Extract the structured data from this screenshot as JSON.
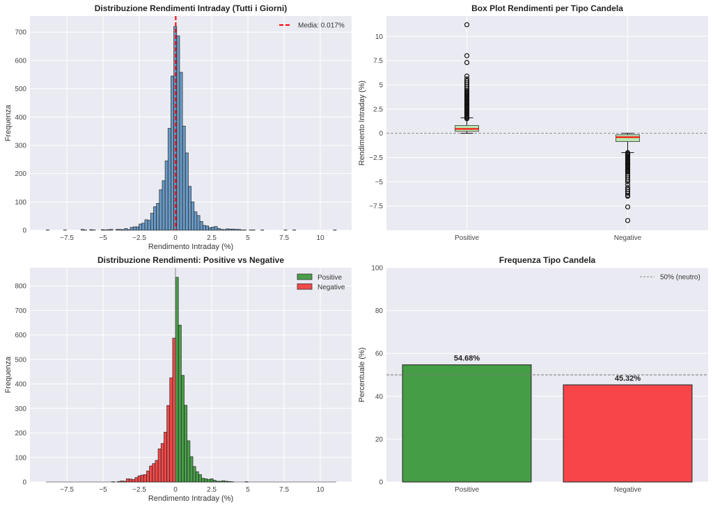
{
  "chart_data": [
    {
      "type": "bar",
      "subtype": "histogram",
      "title": "Distribuzione Rendimenti Intraday (Tutti i Giorni)",
      "xlabel": "Rendimento Intraday (%)",
      "ylabel": "Frequenza",
      "xlim": [
        -10.05,
        12.16
      ],
      "ylim": [
        0,
        757
      ],
      "xticks": [
        -7.5,
        -5.0,
        -2.5,
        0.0,
        2.5,
        5.0,
        7.5,
        10.0
      ],
      "yticks": [
        0,
        100,
        200,
        300,
        400,
        500,
        600,
        700
      ],
      "grid": true,
      "bin_start": -8.93,
      "bin_width": 0.2003,
      "counts": [
        1,
        0,
        0,
        0,
        0,
        0,
        1,
        0,
        0,
        0,
        0,
        0,
        3,
        1,
        0,
        2,
        1,
        0,
        0,
        2,
        1,
        2,
        3,
        0,
        3,
        3,
        2,
        6,
        2,
        10,
        12,
        12,
        22,
        25,
        37,
        35,
        60,
        83,
        95,
        143,
        175,
        245,
        360,
        545,
        720,
        687,
        558,
        368,
        273,
        155,
        100,
        65,
        52,
        31,
        17,
        15,
        9,
        11,
        13,
        6,
        3,
        2,
        5,
        4,
        4,
        3,
        3,
        1,
        1,
        0,
        1,
        1,
        0,
        0,
        1,
        0,
        0,
        0,
        0,
        0,
        0,
        0,
        1,
        0,
        0,
        1,
        0,
        0,
        0,
        0,
        0,
        0,
        0,
        0,
        0,
        0,
        0,
        0,
        0,
        1
      ],
      "color": "#6a9ac4",
      "mean_line": {
        "x": 0.017,
        "label": "Media: 0.017%",
        "color": "#ff0000"
      },
      "legend_placement": "upper right"
    },
    {
      "type": "box",
      "title": "Box Plot Rendimenti per Tipo Candela",
      "ylabel": "Rendimento Intraday (%)",
      "categories": [
        "Positive",
        "Negative"
      ],
      "ylim": [
        -10.0,
        12.1
      ],
      "yticks": [
        -7.5,
        -5.0,
        -2.5,
        0.0,
        2.5,
        5.0,
        7.5,
        10.0
      ],
      "grid": true,
      "reference_line": 0,
      "box_color": "#b8e6b0",
      "median_color": "#ff0000",
      "boxes": [
        {
          "name": "Positive",
          "whisker_low": 0.0,
          "q1": 0.2,
          "median": 0.45,
          "q3": 0.8,
          "whisker_high": 1.6,
          "outliers": [
            1.5,
            1.6,
            1.7,
            1.8,
            1.9,
            2.0,
            2.1,
            2.2,
            2.3,
            2.4,
            2.5,
            2.6,
            2.7,
            2.8,
            2.9,
            3.0,
            3.1,
            3.2,
            3.3,
            3.4,
            3.5,
            3.6,
            3.7,
            3.8,
            3.9,
            4.0,
            4.1,
            4.2,
            4.3,
            4.4,
            4.6,
            4.8,
            5.0,
            5.2,
            5.4,
            5.6,
            5.9,
            7.3,
            8.0,
            11.2
          ]
        },
        {
          "name": "Negative",
          "whisker_low": -2.0,
          "q1": -0.85,
          "median": -0.4,
          "q3": -0.15,
          "whisker_high": 0.0,
          "outliers": [
            -2.0,
            -2.1,
            -2.2,
            -2.3,
            -2.4,
            -2.5,
            -2.6,
            -2.7,
            -2.8,
            -2.9,
            -3.0,
            -3.1,
            -3.2,
            -3.3,
            -3.4,
            -3.5,
            -3.6,
            -3.7,
            -3.8,
            -3.9,
            -4.0,
            -4.2,
            -4.4,
            -4.6,
            -4.8,
            -5.0,
            -5.3,
            -5.6,
            -5.8,
            -6.0,
            -6.2,
            -6.4,
            -6.5,
            -7.6,
            -9.0
          ]
        }
      ]
    },
    {
      "type": "bar",
      "subtype": "histogram",
      "title": "Distribuzione Rendimenti: Positive vs Negative",
      "xlabel": "Rendimento Intraday (%)",
      "ylabel": "Frequenza",
      "xlim": [
        -10.05,
        12.16
      ],
      "ylim": [
        0,
        874
      ],
      "xticks": [
        -7.5,
        -5.0,
        -2.5,
        0.0,
        2.5,
        5.0,
        7.5,
        10.0
      ],
      "yticks": [
        0,
        100,
        200,
        300,
        400,
        500,
        600,
        700,
        800
      ],
      "grid": true,
      "legend_placement": "upper right",
      "data_range": [
        -8.93,
        11.1
      ],
      "series": [
        {
          "name": "Positive",
          "color": "#4a9e4a",
          "bin_start": 0.0,
          "bin_width": 0.2,
          "counts": [
            835,
            640,
            435,
            313,
            168,
            103,
            63,
            42,
            30,
            15,
            13,
            10,
            13,
            7,
            3,
            3,
            5,
            3,
            2,
            1,
            0,
            0,
            0,
            0,
            1
          ]
        },
        {
          "name": "Negative",
          "color": "#f24a4a",
          "bin_start": -4.8,
          "bin_width": 0.2,
          "counts": [
            0,
            0,
            1,
            0,
            2,
            4,
            3,
            13,
            12,
            10,
            18,
            25,
            28,
            30,
            45,
            65,
            75,
            88,
            135,
            157,
            203,
            312,
            425,
            587
          ]
        }
      ]
    },
    {
      "type": "bar",
      "title": "Frequenza Tipo Candela",
      "ylabel": "Percentuale (%)",
      "categories": [
        "Positive",
        "Negative"
      ],
      "values": [
        54.68,
        45.32
      ],
      "data_labels": [
        "54.68%",
        "45.32%"
      ],
      "colors": [
        "#459e45",
        "#f7454a"
      ],
      "ylim": [
        0,
        100
      ],
      "xlim": [
        -0.5,
        1.5
      ],
      "yticks": [
        0,
        20,
        40,
        60,
        80,
        100
      ],
      "grid": true,
      "reference_line": {
        "y": 50,
        "label": "50% (neutro)"
      },
      "legend_placement": "upper right"
    }
  ]
}
